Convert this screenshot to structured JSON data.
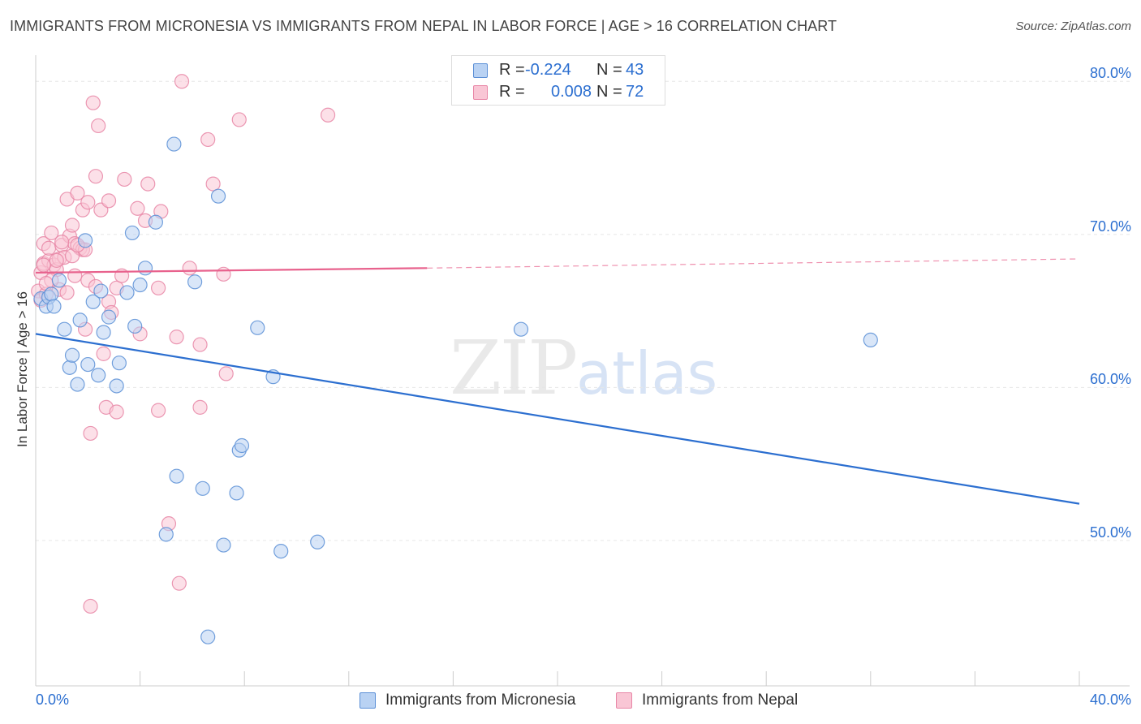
{
  "title": "IMMIGRANTS FROM MICRONESIA VS IMMIGRANTS FROM NEPAL IN LABOR FORCE | AGE > 16 CORRELATION CHART",
  "source": "Source: ZipAtlas.com",
  "watermark": {
    "zip": "ZIP",
    "atlas": "atlas"
  },
  "colors": {
    "micronesia_fill": "#b9d2f3",
    "micronesia_stroke": "#5b8fd6",
    "micronesia_line": "#2c6fd0",
    "nepal_fill": "#f9c6d5",
    "nepal_stroke": "#e886a6",
    "nepal_line": "#e8628d",
    "accent_text": "#2c6fd0",
    "grid": "#e6e6e6"
  },
  "legend_top": {
    "rows": [
      {
        "r_label": "R =",
        "r_value": "-0.224",
        "n_label": "N =",
        "n_value": "43"
      },
      {
        "r_label": "R =",
        "r_value": "0.008",
        "n_label": "N =",
        "n_value": "72"
      }
    ]
  },
  "chart_data": {
    "type": "scatter",
    "title": "IMMIGRANTS FROM MICRONESIA VS IMMIGRANTS FROM NEPAL IN LABOR FORCE | AGE > 16 CORRELATION CHART",
    "xlabel": "",
    "ylabel": "In Labor Force | Age > 16",
    "xlim": [
      0,
      40
    ],
    "ylim": [
      40.5,
      81.5
    ],
    "x_tick_labels": [
      "0.0%",
      "40.0%"
    ],
    "y_ticks": [
      50,
      60,
      70,
      80
    ],
    "y_tick_labels": [
      "50.0%",
      "60.0%",
      "70.0%",
      "80.0%"
    ],
    "grid": true,
    "legend_position": "bottom",
    "series": [
      {
        "name": "Immigrants from Micronesia",
        "points": [
          [
            0.2,
            65.8
          ],
          [
            0.4,
            65.3
          ],
          [
            0.5,
            65.9
          ],
          [
            0.6,
            66.1
          ],
          [
            0.7,
            65.3
          ],
          [
            0.9,
            67.0
          ],
          [
            1.1,
            63.8
          ],
          [
            1.3,
            61.3
          ],
          [
            1.4,
            62.1
          ],
          [
            1.6,
            60.2
          ],
          [
            1.7,
            64.4
          ],
          [
            1.9,
            69.6
          ],
          [
            2.0,
            61.5
          ],
          [
            2.2,
            65.6
          ],
          [
            2.4,
            60.8
          ],
          [
            2.5,
            66.3
          ],
          [
            2.6,
            63.6
          ],
          [
            2.8,
            64.6
          ],
          [
            3.1,
            60.1
          ],
          [
            3.2,
            61.6
          ],
          [
            3.5,
            66.2
          ],
          [
            3.7,
            70.1
          ],
          [
            3.8,
            64.0
          ],
          [
            4.0,
            66.7
          ],
          [
            4.2,
            67.8
          ],
          [
            4.6,
            70.8
          ],
          [
            5.3,
            75.9
          ],
          [
            5.0,
            50.4
          ],
          [
            5.4,
            54.2
          ],
          [
            6.1,
            66.9
          ],
          [
            6.4,
            53.4
          ],
          [
            6.6,
            43.7
          ],
          [
            7.0,
            72.5
          ],
          [
            7.2,
            49.7
          ],
          [
            7.7,
            53.1
          ],
          [
            7.8,
            55.9
          ],
          [
            7.9,
            56.2
          ],
          [
            8.5,
            63.9
          ],
          [
            9.1,
            60.7
          ],
          [
            9.4,
            49.3
          ],
          [
            10.8,
            49.9
          ],
          [
            18.6,
            63.8
          ],
          [
            32.0,
            63.1
          ]
        ]
      },
      {
        "name": "Immigrants from Nepal",
        "points": [
          [
            0.1,
            66.3
          ],
          [
            0.2,
            67.5
          ],
          [
            0.2,
            65.7
          ],
          [
            0.3,
            68.1
          ],
          [
            0.3,
            69.4
          ],
          [
            0.4,
            66.1
          ],
          [
            0.5,
            68.3
          ],
          [
            0.5,
            69.1
          ],
          [
            0.6,
            70.1
          ],
          [
            0.7,
            68.0
          ],
          [
            0.8,
            67.7
          ],
          [
            0.9,
            68.4
          ],
          [
            0.9,
            66.4
          ],
          [
            1.0,
            69.3
          ],
          [
            1.1,
            68.5
          ],
          [
            1.2,
            66.2
          ],
          [
            1.2,
            72.3
          ],
          [
            1.3,
            69.9
          ],
          [
            1.4,
            70.6
          ],
          [
            1.5,
            69.4
          ],
          [
            1.5,
            67.3
          ],
          [
            1.6,
            72.7
          ],
          [
            1.7,
            69.1
          ],
          [
            1.8,
            71.6
          ],
          [
            1.8,
            69.0
          ],
          [
            1.9,
            63.8
          ],
          [
            2.0,
            67.0
          ],
          [
            2.0,
            72.1
          ],
          [
            2.1,
            57.0
          ],
          [
            2.2,
            78.6
          ],
          [
            2.3,
            66.6
          ],
          [
            2.3,
            73.8
          ],
          [
            2.4,
            77.1
          ],
          [
            2.5,
            71.6
          ],
          [
            2.6,
            62.2
          ],
          [
            2.7,
            58.7
          ],
          [
            2.8,
            72.2
          ],
          [
            2.8,
            65.6
          ],
          [
            3.1,
            58.4
          ],
          [
            3.1,
            66.5
          ],
          [
            3.3,
            67.3
          ],
          [
            3.4,
            73.6
          ],
          [
            3.9,
            71.7
          ],
          [
            4.0,
            63.5
          ],
          [
            4.2,
            70.9
          ],
          [
            4.3,
            73.3
          ],
          [
            4.7,
            58.5
          ],
          [
            4.7,
            66.5
          ],
          [
            4.8,
            71.5
          ],
          [
            5.4,
            63.3
          ],
          [
            5.1,
            51.1
          ],
          [
            5.5,
            47.2
          ],
          [
            5.6,
            80.0
          ],
          [
            5.9,
            67.8
          ],
          [
            6.3,
            62.8
          ],
          [
            6.3,
            58.7
          ],
          [
            6.6,
            76.2
          ],
          [
            6.8,
            73.3
          ],
          [
            7.2,
            67.4
          ],
          [
            7.3,
            60.9
          ],
          [
            7.8,
            77.5
          ],
          [
            11.2,
            77.8
          ],
          [
            2.1,
            45.7
          ],
          [
            0.3,
            68.0
          ],
          [
            0.6,
            67.0
          ],
          [
            1.0,
            69.5
          ],
          [
            1.4,
            68.6
          ],
          [
            1.9,
            69.0
          ],
          [
            2.9,
            64.9
          ],
          [
            0.4,
            66.8
          ],
          [
            0.8,
            68.3
          ],
          [
            1.6,
            69.3
          ]
        ]
      }
    ],
    "trend_lines": [
      {
        "series": "Immigrants from Micronesia",
        "x0": 0,
        "y0": 63.5,
        "x1": 40,
        "y1": 52.4,
        "style": "solid"
      },
      {
        "series": "Immigrants from Nepal",
        "x0": 0,
        "y0": 67.5,
        "x1": 15,
        "y1": 67.8,
        "style": "solid",
        "dashed_to_x": 40,
        "dashed_to_y": 68.4
      }
    ]
  }
}
